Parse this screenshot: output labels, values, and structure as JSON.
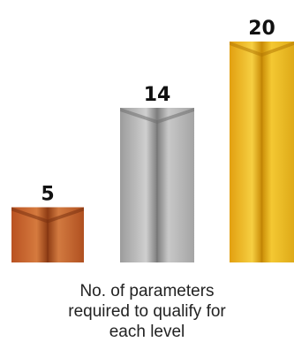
{
  "chart_data": {
    "type": "bar",
    "categories": [
      "",
      "",
      ""
    ],
    "values": [
      5,
      14,
      20
    ],
    "labels": [
      "5",
      "14",
      "20"
    ],
    "ylim": [
      0,
      20
    ],
    "grid": false,
    "colors": [
      "#c8642a",
      "#b4b4b4",
      "#e8b020"
    ]
  },
  "caption": {
    "line1": "No. of parameters",
    "line2": "required to qualify for",
    "line3": "each level"
  }
}
